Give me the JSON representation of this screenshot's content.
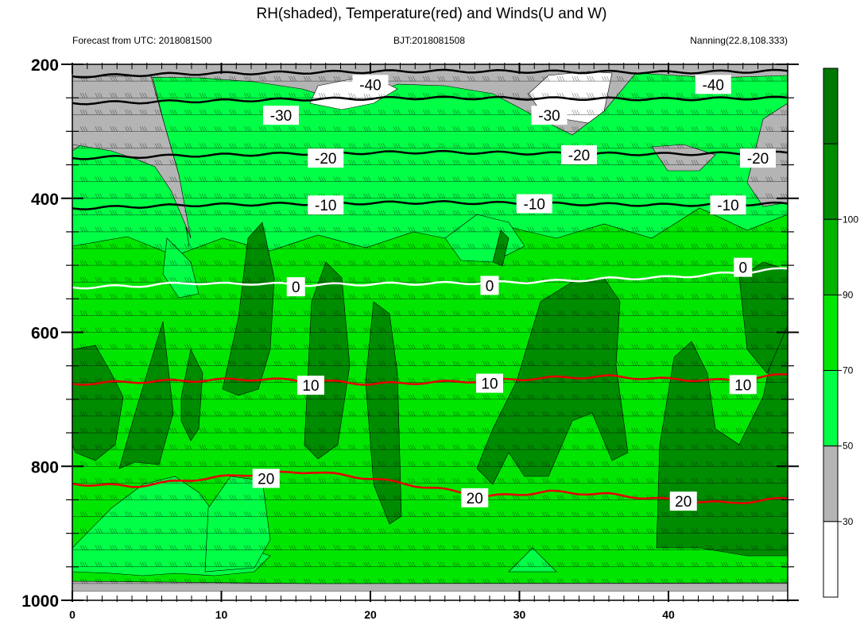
{
  "chart_data": {
    "type": "heatmap",
    "title": "RH(shaded), Temperature(red) and Winds(U and W)",
    "subtitle_left": "Forecast from UTC: 2018081500",
    "subtitle_center": "BJT:2018081508",
    "subtitle_right": "Nanning(22.8,108.333)",
    "xlabel": "",
    "ylabel": "",
    "xlim": [
      0,
      48
    ],
    "ylim": [
      1000,
      200
    ],
    "x_ticks": [
      "0",
      "10",
      "20",
      "30",
      "40"
    ],
    "y_ticks": [
      "200",
      "400",
      "600",
      "800",
      "1000"
    ],
    "colorbar": {
      "levels": [
        "30",
        "50",
        "70",
        "90",
        "100"
      ],
      "colors": [
        "#ffffff",
        "#b4b4b4",
        "#00ff46",
        "#00e600",
        "#00b400",
        "#008c00",
        "#007800"
      ]
    },
    "rh_colors": {
      "dry": "#b4b4b4",
      "very_dry": "#ffffff",
      "moist": "#00ff46",
      "humid": "#00e600",
      "wet": "#008c00"
    },
    "temperature_contours": [
      {
        "level": "-40",
        "color": "#000000",
        "labels": [
          [
            20,
            230
          ],
          [
            43,
            230
          ]
        ],
        "x": [
          0,
          8,
          16,
          24,
          32,
          40,
          48
        ],
        "p": [
          218,
          214,
          212,
          210,
          211,
          212,
          210
        ]
      },
      {
        "level": "-30",
        "color": "#000000",
        "labels": [
          [
            14,
            276
          ],
          [
            32,
            276
          ]
        ],
        "x": [
          0,
          8,
          16,
          24,
          32,
          40,
          48
        ],
        "p": [
          258,
          255,
          252,
          250,
          251,
          252,
          250
        ]
      },
      {
        "level": "-20",
        "color": "#000000",
        "labels": [
          [
            17,
            340
          ],
          [
            34,
            335
          ],
          [
            46,
            340
          ]
        ],
        "x": [
          0,
          8,
          16,
          24,
          32,
          40,
          48
        ],
        "p": [
          340,
          336,
          333,
          331,
          333,
          334,
          332
        ]
      },
      {
        "level": "-10",
        "color": "#000000",
        "labels": [
          [
            17,
            410
          ],
          [
            31,
            408
          ],
          [
            44,
            410
          ]
        ],
        "x": [
          0,
          8,
          16,
          24,
          32,
          40,
          48
        ],
        "p": [
          415,
          410,
          408,
          406,
          408,
          410,
          408
        ]
      },
      {
        "level": "0",
        "color": "#ffffff",
        "labels": [
          [
            15,
            532
          ],
          [
            28,
            530
          ],
          [
            45,
            503
          ]
        ],
        "x": [
          0,
          4,
          8,
          10,
          12,
          16,
          20,
          24,
          28,
          32,
          36,
          40,
          44,
          48
        ],
        "p": [
          533,
          531,
          526,
          528,
          527,
          529,
          528,
          527,
          526,
          524,
          520,
          518,
          512,
          505
        ]
      },
      {
        "level": "10",
        "color": "#e60000",
        "labels": [
          [
            16,
            679
          ],
          [
            28,
            676
          ],
          [
            45,
            678
          ]
        ],
        "x": [
          0,
          4,
          8,
          12,
          16,
          20,
          24,
          28,
          32,
          36,
          40,
          44,
          48
        ],
        "p": [
          677,
          674,
          672,
          670,
          672,
          677,
          675,
          672,
          668,
          666,
          670,
          672,
          663
        ]
      },
      {
        "level": "20",
        "color": "#e60000",
        "labels": [
          [
            13,
            818
          ],
          [
            27,
            847
          ],
          [
            41,
            852
          ]
        ],
        "x": [
          0,
          4,
          8,
          12,
          16,
          20,
          24,
          28,
          32,
          36,
          40,
          44,
          48
        ],
        "p": [
          826,
          830,
          820,
          812,
          808,
          818,
          832,
          845,
          838,
          842,
          850,
          855,
          848
        ]
      }
    ]
  }
}
